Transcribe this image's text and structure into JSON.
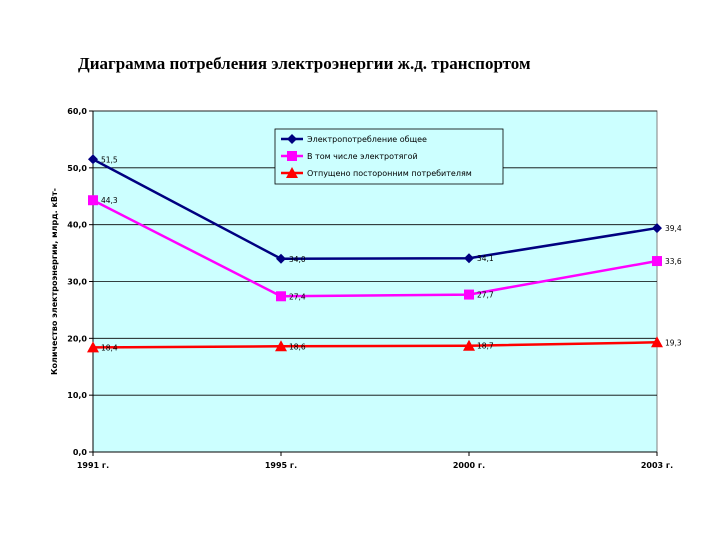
{
  "chart_title": "Диаграмма потребления электроэнергии ж.д. транспортом",
  "colors": {
    "plot_bg": "#ccffff",
    "grid": "#000000",
    "series_total": "#000080",
    "series_traction": "#ff00ff",
    "series_third": "#ff0000"
  },
  "chart_data": {
    "type": "line",
    "title": "Диаграмма потребления электроэнергии ж.д. транспортом",
    "xlabel": "",
    "ylabel": "Количество электроэнергии, млрд. кВт-",
    "categories": [
      "1991 г.",
      "1995 г.",
      "2000 г.",
      "2003 г."
    ],
    "ylim": [
      0,
      60
    ],
    "yticks": [
      "0,0",
      "10,0",
      "20,0",
      "30,0",
      "40,0",
      "50,0",
      "60,0"
    ],
    "grid": true,
    "legend_position": "top-center",
    "series": [
      {
        "name": "Электропотребление общее",
        "values": [
          51.5,
          34.0,
          34.1,
          39.4
        ],
        "labels": [
          "51,5",
          "34,0",
          "34,1",
          "39,4"
        ],
        "marker": "diamond",
        "color_key": "series_total"
      },
      {
        "name": "В том числе электротягой",
        "values": [
          44.3,
          27.4,
          27.7,
          33.6
        ],
        "labels": [
          "44,3",
          "27,4",
          "27,7",
          "33,6"
        ],
        "marker": "square",
        "color_key": "series_traction"
      },
      {
        "name": "Отпущено  посторонним потребителям",
        "values": [
          18.4,
          18.6,
          18.7,
          19.3
        ],
        "labels": [
          "18,4",
          "18,6",
          "18,7",
          "19,3"
        ],
        "marker": "triangle",
        "color_key": "series_third"
      }
    ]
  }
}
